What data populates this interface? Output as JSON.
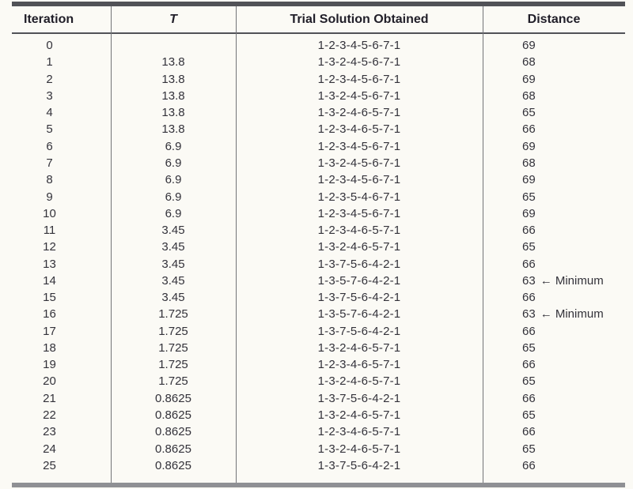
{
  "table": {
    "headers": {
      "iteration": "Iteration",
      "t": "T",
      "trial": "Trial Solution Obtained",
      "distance": "Distance"
    },
    "rows": [
      {
        "iteration": "0",
        "t": "",
        "trial": "1-2-3-4-5-6-7-1",
        "distance": "69"
      },
      {
        "iteration": "1",
        "t": "13.8",
        "trial": "1-3-2-4-5-6-7-1",
        "distance": "68"
      },
      {
        "iteration": "2",
        "t": "13.8",
        "trial": "1-2-3-4-5-6-7-1",
        "distance": "69"
      },
      {
        "iteration": "3",
        "t": "13.8",
        "trial": "1-3-2-4-5-6-7-1",
        "distance": "68"
      },
      {
        "iteration": "4",
        "t": "13.8",
        "trial": "1-3-2-4-6-5-7-1",
        "distance": "65"
      },
      {
        "iteration": "5",
        "t": "13.8",
        "trial": "1-2-3-4-6-5-7-1",
        "distance": "66"
      },
      {
        "iteration": "6",
        "t": "6.9",
        "trial": "1-2-3-4-5-6-7-1",
        "distance": "69"
      },
      {
        "iteration": "7",
        "t": "6.9",
        "trial": "1-3-2-4-5-6-7-1",
        "distance": "68"
      },
      {
        "iteration": "8",
        "t": "6.9",
        "trial": "1-2-3-4-5-6-7-1",
        "distance": "69"
      },
      {
        "iteration": "9",
        "t": "6.9",
        "trial": "1-2-3-5-4-6-7-1",
        "distance": "65"
      },
      {
        "iteration": "10",
        "t": "6.9",
        "trial": "1-2-3-4-5-6-7-1",
        "distance": "69"
      },
      {
        "iteration": "11",
        "t": "3.45",
        "trial": "1-2-3-4-6-5-7-1",
        "distance": "66"
      },
      {
        "iteration": "12",
        "t": "3.45",
        "trial": "1-3-2-4-6-5-7-1",
        "distance": "65"
      },
      {
        "iteration": "13",
        "t": "3.45",
        "trial": "1-3-7-5-6-4-2-1",
        "distance": "66"
      },
      {
        "iteration": "14",
        "t": "3.45",
        "trial": "1-3-5-7-6-4-2-1",
        "distance": "63",
        "annotation": "← Minimum"
      },
      {
        "iteration": "15",
        "t": "3.45",
        "trial": "1-3-7-5-6-4-2-1",
        "distance": "66"
      },
      {
        "iteration": "16",
        "t": "1.725",
        "trial": "1-3-5-7-6-4-2-1",
        "distance": "63",
        "annotation": "← Minimum"
      },
      {
        "iteration": "17",
        "t": "1.725",
        "trial": "1-3-7-5-6-4-2-1",
        "distance": "66"
      },
      {
        "iteration": "18",
        "t": "1.725",
        "trial": "1-3-2-4-6-5-7-1",
        "distance": "65"
      },
      {
        "iteration": "19",
        "t": "1.725",
        "trial": "1-2-3-4-6-5-7-1",
        "distance": "66"
      },
      {
        "iteration": "20",
        "t": "1.725",
        "trial": "1-3-2-4-6-5-7-1",
        "distance": "65"
      },
      {
        "iteration": "21",
        "t": "0.8625",
        "trial": "1-3-7-5-6-4-2-1",
        "distance": "66"
      },
      {
        "iteration": "22",
        "t": "0.8625",
        "trial": "1-3-2-4-6-5-7-1",
        "distance": "65"
      },
      {
        "iteration": "23",
        "t": "0.8625",
        "trial": "1-2-3-4-6-5-7-1",
        "distance": "66"
      },
      {
        "iteration": "24",
        "t": "0.8625",
        "trial": "1-3-2-4-6-5-7-1",
        "distance": "65"
      },
      {
        "iteration": "25",
        "t": "0.8625",
        "trial": "1-3-7-5-6-4-2-1",
        "distance": "66"
      }
    ]
  },
  "colors": {
    "background": "#fbfaf5",
    "header_text": "#201e28",
    "body_text": "#33323a",
    "top_rule": "#515257",
    "bottom_rule": "#8f9094",
    "separator": "#737478"
  }
}
